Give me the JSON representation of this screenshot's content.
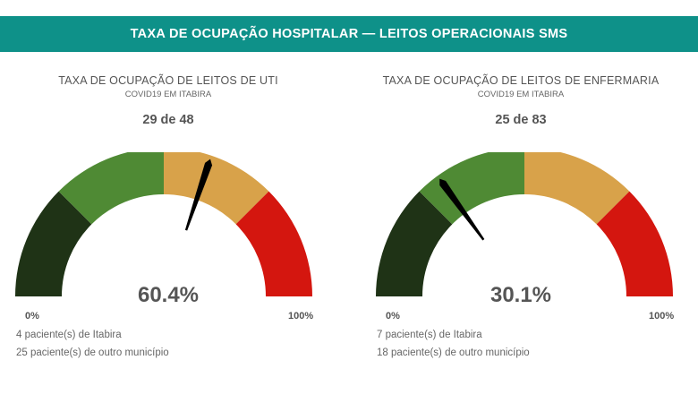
{
  "header": {
    "title": "TAXA DE OCUPAÇÃO HOSPITALAR — LEITOS OPERACIONAIS SMS"
  },
  "colors": {
    "header_bg": "#0e9189",
    "band_1": "#1f3316",
    "band_2": "#4f8a34",
    "band_3": "#d8a24a",
    "band_4": "#d4160f",
    "needle": "#000000"
  },
  "gauges": [
    {
      "title": "TAXA DE OCUPAÇÃO DE LEITOS DE UTI",
      "subtitle": "COVID19 EM ITABIRA",
      "count": "29 de 48",
      "percent_label": "60.4%",
      "value": 60.4,
      "min_label": "0%",
      "max_label": "100%",
      "info_1": "4 paciente(s) de Itabira",
      "info_2": "25 paciente(s) de outro município"
    },
    {
      "title": "TAXA DE OCUPAÇÃO DE LEITOS DE ENFERMARIA",
      "subtitle": "COVID19 EM ITABIRA",
      "count": "25 de 83",
      "percent_label": "30.1%",
      "value": 30.1,
      "min_label": "0%",
      "max_label": "100%",
      "info_1": "7 paciente(s) de Itabira",
      "info_2": "18 paciente(s) de outro município"
    }
  ]
}
